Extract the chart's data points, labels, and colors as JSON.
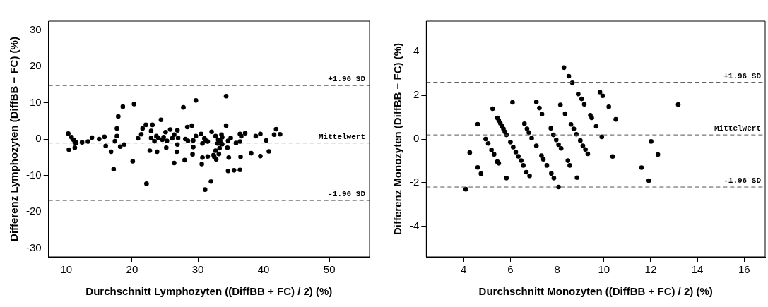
{
  "chart_data": [
    {
      "type": "scatter",
      "xlabel": "Durchschnitt Lymphozyten ((DiffBB + FC) / 2) (%)",
      "ylabel": "Differenz Lymphozyten (DiffBB − FC) (%)",
      "color": "#000000",
      "marker": "circle",
      "grid": false,
      "x": [
        10.3,
        10.4,
        10.8,
        11.1,
        11.3,
        11.3,
        11.5,
        12.4,
        13.3,
        13.9,
        15.0,
        15.8,
        16.0,
        16.8,
        17.2,
        17.4,
        17.7,
        17.7,
        17.9,
        18.2,
        18.6,
        18.8,
        20.1,
        20.3,
        20.9,
        21.4,
        21.6,
        22.1,
        22.2,
        22.7,
        22.9,
        22.9,
        23.1,
        23.4,
        23.7,
        23.8,
        24.0,
        24.4,
        24.6,
        24.8,
        25.1,
        25.2,
        25.3,
        25.8,
        26.1,
        26.4,
        26.4,
        26.8,
        26.9,
        26.9,
        27.0,
        27.8,
        28.0,
        28.1,
        28.4,
        28.5,
        29.1,
        29.2,
        29.3,
        29.3,
        29.7,
        29.7,
        30.5,
        30.7,
        30.7,
        30.6,
        31.0,
        31.2,
        31.5,
        31.5,
        31.1,
        32.0,
        32.1,
        32.4,
        32.5,
        32.7,
        32.7,
        32.8,
        33.0,
        33.1,
        33.2,
        33.3,
        33.4,
        33.6,
        33.7,
        33.7,
        34.3,
        34.3,
        34.5,
        34.6,
        34.6,
        34.7,
        35.0,
        35.5,
        35.8,
        36.4,
        36.4,
        36.5,
        36.4,
        36.6,
        37.2,
        38.1,
        38.8,
        39.5,
        39.5,
        40.4,
        40.8,
        41.6,
        41.9,
        42.5
      ],
      "values": [
        1.5,
        -2.9,
        0.5,
        -0.2,
        -0.9,
        -2.4,
        -1.0,
        -0.9,
        -0.7,
        0.4,
        0.0,
        0.6,
        -1.9,
        -3.5,
        -8.3,
        -0.6,
        0.8,
        2.9,
        6.2,
        -2.1,
        8.9,
        -1.5,
        -6.1,
        9.6,
        0.2,
        1.3,
        2.9,
        3.9,
        -12.3,
        -3.2,
        0.3,
        2.2,
        3.9,
        -0.6,
        0.8,
        -3.5,
        0.3,
        5.3,
        -0.2,
        0.5,
        1.9,
        -2.4,
        -0.5,
        2.6,
        0.2,
        1.2,
        -6.6,
        -3.5,
        2.4,
        -1.5,
        0.3,
        8.7,
        -5.8,
        0.0,
        3.3,
        -0.5,
        3.7,
        -4.2,
        -0.4,
        -2.2,
        0.8,
        10.6,
        1.4,
        -1.2,
        -5.1,
        -6.9,
        0.2,
        -0.4,
        -0.7,
        -4.8,
        -13.9,
        -11.7,
        2.0,
        -4.4,
        -4.9,
        -3.2,
        0.8,
        -5.6,
        -1.2,
        -0.2,
        -4.1,
        -2.5,
        -0.6,
        1.2,
        -1.4,
        0.5,
        11.8,
        3.7,
        -2.4,
        -0.5,
        -8.8,
        -5.1,
        0.3,
        -8.6,
        -1.1,
        1.4,
        -0.7,
        -4.9,
        -8.5,
        0.8,
        1.6,
        -3.9,
        0.8,
        1.4,
        -4.7,
        -0.4,
        -3.4,
        1.2,
        2.7,
        1.3
      ],
      "xlim": [
        7.3,
        56.1
      ],
      "ylim": [
        -32.4,
        32.4
      ],
      "xticks": [
        10,
        20,
        30,
        40,
        50
      ],
      "yticks": [
        -30,
        -20,
        -10,
        0,
        10,
        20,
        30
      ],
      "ref_lines": [
        {
          "axis": "y",
          "value": 14.7,
          "label": "+1.96 SD",
          "color": "#555555",
          "line_style": "dashed"
        },
        {
          "axis": "y",
          "value": -1.1,
          "label": "Mittelwert",
          "color": "#555555",
          "line_style": "dashed"
        },
        {
          "axis": "y",
          "value": -16.9,
          "label": "-1.96 SD",
          "color": "#555555",
          "line_style": "dashed"
        }
      ]
    },
    {
      "type": "scatter",
      "xlabel": "Durchschnitt Monozyten ((DiffBB + FC) / 2) (%)",
      "ylabel": "Differenz Monozyten (DiffBB − FC) (%)",
      "color": "#000000",
      "marker": "circle",
      "grid": false,
      "x": [
        4.09,
        4.26,
        4.6,
        4.6,
        4.74,
        4.94,
        5.05,
        5.19,
        5.3,
        5.44,
        5.5,
        5.24,
        5.83,
        5.44,
        5.5,
        5.57,
        5.63,
        5.7,
        5.76,
        5.83,
        6.0,
        6.12,
        6.23,
        6.34,
        6.46,
        6.55,
        6.68,
        6.82,
        6.09,
        6.6,
        6.71,
        6.79,
        6.91,
        7.11,
        7.33,
        7.41,
        7.56,
        7.75,
        7.86,
        7.11,
        7.24,
        7.35,
        7.73,
        7.84,
        7.96,
        8.06,
        8.17,
        8.14,
        8.34,
        8.46,
        8.54,
        8.06,
        8.85,
        8.59,
        8.71,
        8.82,
        8.99,
        9.1,
        9.21,
        9.31,
        8.29,
        8.5,
        8.65,
        8.9,
        9.05,
        9.16,
        9.42,
        9.48,
        9.67,
        9.91,
        9.83,
        9.95,
        10.21,
        10.51,
        10.37,
        13.18,
        12.02,
        12.31,
        11.61,
        11.92
      ],
      "values": [
        -2.3,
        -0.62,
        0.68,
        -1.3,
        -1.59,
        0.0,
        -0.2,
        -0.5,
        -0.7,
        -1.04,
        -1.11,
        1.39,
        -1.79,
        0.97,
        0.85,
        0.72,
        0.6,
        0.47,
        0.33,
        0.19,
        -0.14,
        -0.37,
        -0.6,
        -0.79,
        -0.99,
        -1.21,
        -1.52,
        -1.69,
        1.68,
        0.7,
        0.47,
        0.3,
        0.04,
        -0.31,
        -0.76,
        -0.93,
        -1.21,
        -1.58,
        -1.79,
        1.7,
        1.42,
        1.14,
        0.49,
        0.19,
        -0.04,
        -0.26,
        -0.43,
        1.57,
        1.16,
        -0.99,
        -1.21,
        -2.2,
        -1.77,
        0.67,
        0.47,
        0.22,
        -0.07,
        -0.31,
        -0.48,
        -0.68,
        3.27,
        2.88,
        2.58,
        2.06,
        1.84,
        1.59,
        1.09,
        0.97,
        0.58,
        0.1,
        2.15,
        1.98,
        1.48,
        0.9,
        -0.8,
        1.58,
        -0.11,
        -0.71,
        -1.31,
        -1.91
      ],
      "xlim": [
        2.4,
        16.9
      ],
      "ylim": [
        -5.4,
        5.4
      ],
      "xticks": [
        4,
        6,
        8,
        10,
        12,
        14,
        16
      ],
      "yticks": [
        -4,
        -2,
        0,
        2,
        4
      ],
      "ref_lines": [
        {
          "axis": "y",
          "value": 2.6,
          "label": "+1.96 SD",
          "color": "#555555",
          "line_style": "dashed"
        },
        {
          "axis": "y",
          "value": 0.19,
          "label": "Mittelwert",
          "color": "#555555",
          "line_style": "dashed"
        },
        {
          "axis": "y",
          "value": -2.2,
          "label": "-1.96 SD",
          "color": "#555555",
          "line_style": "dashed"
        }
      ]
    }
  ]
}
